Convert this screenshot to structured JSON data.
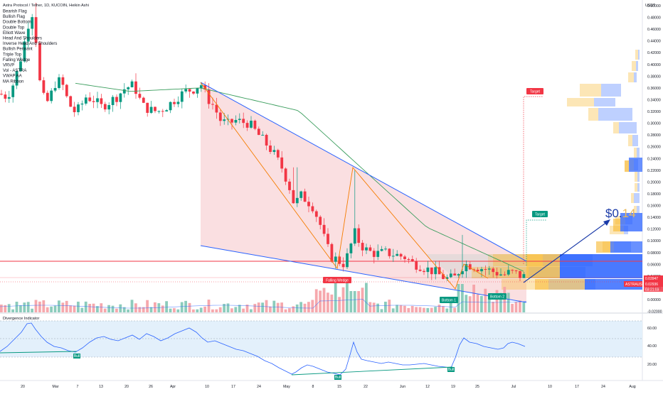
{
  "chart_data": {
    "type": "candlestick",
    "title": "Astra Protocol / Tether, 1D, KUCOIN, Heikin Ashi",
    "currency": "USDT",
    "indicators": [
      "Bearish Flag",
      "Bullish Flag",
      "Double Bottom",
      "Double Top",
      "Elliott Wave",
      "Head And Shoulders",
      "Inverse Head And Shoulders",
      "Bullish Pennant",
      "Triple Top",
      "Falling Wedge",
      "VRVP",
      "Vol - ASTRA",
      "VWAP AA",
      "MA Ribbon"
    ],
    "x_axis_labels": [
      "20",
      "Mar",
      "7",
      "13",
      "20",
      "26",
      "Apr",
      "10",
      "17",
      "24",
      "May",
      "8",
      "15",
      "22",
      "Jun",
      "12",
      "19",
      "25",
      "Jul",
      "10",
      "17",
      "24",
      "Aug"
    ],
    "y_axis_labels": [
      "0.50000",
      "0.48000",
      "0.46000",
      "0.44000",
      "0.42000",
      "0.40000",
      "0.38000",
      "0.36000",
      "0.34000",
      "0.32000",
      "0.30000",
      "0.28000",
      "0.26000",
      "0.24000",
      "0.22000",
      "0.20000",
      "0.18000",
      "0.16000",
      "0.14000",
      "0.12000",
      "0.10000",
      "0.08000",
      "0.06000",
      "0.04000",
      "0.02000",
      "0.00000",
      "-0.02000"
    ],
    "ylim": [
      -0.025,
      0.51
    ],
    "price_tags": [
      {
        "label": "0.03947",
        "color": "#f23645"
      },
      {
        "label": "ASTRAUSDT",
        "value": "0.02936",
        "color": "#f23645"
      },
      {
        "label": "03:21:03",
        "color": "#f23645"
      }
    ],
    "annotations": [
      {
        "text": "Target",
        "color": "#f23645"
      },
      {
        "text": "Target",
        "color": "#089981"
      },
      {
        "text": "Falling Wedge",
        "color": "#f23645"
      },
      {
        "text": "Bottom 1",
        "color": "#089981"
      },
      {
        "text": "Bottom 2",
        "color": "#089981"
      }
    ],
    "big_label": {
      "prefix": "$0.",
      "suffix": "14"
    },
    "oscillator": {
      "title": "Divergence Indicator",
      "y_axis_labels": [
        "60.00",
        "40.00",
        "20.00"
      ],
      "signals": [
        "Bull",
        "Bull",
        "Bull"
      ]
    }
  }
}
